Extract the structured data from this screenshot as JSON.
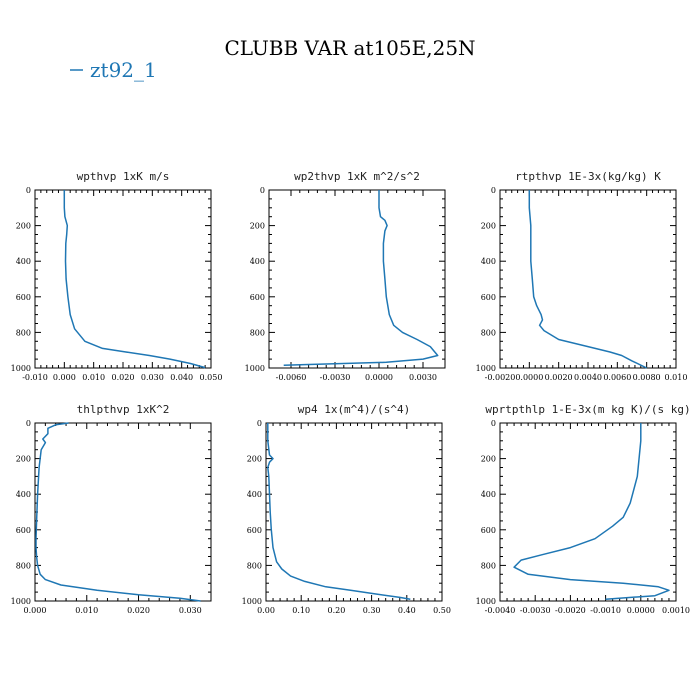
{
  "title": "CLUBB VAR at105E,25N",
  "legend": {
    "label": "zt92_1",
    "color": "#1f77b4"
  },
  "chart_data": [
    {
      "type": "line",
      "title": "wpthvp  1xK m/s",
      "series_name": "zt92_1",
      "xlim": [
        -0.01,
        0.05
      ],
      "ylim": [
        1000,
        0
      ],
      "xticks": [
        -0.01,
        0,
        0.01,
        0.02,
        0.03,
        0.04,
        0.05
      ],
      "xtick_labels": [
        "-0.010",
        "0.000",
        "0.010",
        "0.020",
        "0.030",
        "0.040",
        "0.050"
      ],
      "yticks": [
        0,
        200,
        400,
        600,
        800,
        1000
      ],
      "ytick_labels": [
        "0",
        "200",
        "400",
        "600",
        "800",
        "1000"
      ],
      "x": [
        0,
        0,
        0.0002,
        0.001,
        0.0008,
        0.0005,
        0.0004,
        0.0006,
        0.0012,
        0.002,
        0.0035,
        0.007,
        0.013,
        0.021,
        0.029,
        0.036,
        0.043,
        0.048
      ],
      "y": [
        0,
        100,
        150,
        200,
        250,
        300,
        400,
        500,
        600,
        700,
        780,
        850,
        890,
        910,
        930,
        950,
        975,
        998
      ]
    },
    {
      "type": "line",
      "title": "wp2thvp  1xK m^2/s^2",
      "series_name": "zt92_1",
      "xlim": [
        -0.0075,
        0.0045
      ],
      "ylim": [
        1000,
        0
      ],
      "xticks": [
        -0.006,
        -0.003,
        0,
        0.003
      ],
      "xtick_labels": [
        "-0.0060",
        "-0.0030",
        "0.0000",
        "0.0030"
      ],
      "yticks": [
        0,
        200,
        400,
        600,
        800,
        1000
      ],
      "ytick_labels": [
        "0",
        "200",
        "400",
        "600",
        "800",
        "1000"
      ],
      "x": [
        0,
        0,
        0.0001,
        0.0004,
        0.00055,
        0.0004,
        0.0003,
        0.0003,
        0.0004,
        0.0005,
        0.0007,
        0.001,
        0.0016,
        0.0026,
        0.0035,
        0.004,
        0.003,
        0.0005,
        -0.0045,
        -0.0065
      ],
      "y": [
        0,
        100,
        150,
        170,
        200,
        230,
        300,
        400,
        500,
        600,
        700,
        760,
        800,
        840,
        880,
        930,
        950,
        968,
        980,
        985
      ]
    },
    {
      "type": "line",
      "title": "rtpthvp  1E-3x(kg/kg) K",
      "series_name": "zt92_1",
      "xlim": [
        -0.002,
        0.01
      ],
      "ylim": [
        1000,
        0
      ],
      "xticks": [
        -0.002,
        0,
        0.002,
        0.004,
        0.006,
        0.008,
        0.01
      ],
      "xtick_labels": [
        "-0.0020",
        "0.0000",
        "0.0020",
        "0.0040",
        "0.0060",
        "0.0080",
        "0.010"
      ],
      "yticks": [
        0,
        200,
        400,
        600,
        800,
        1000
      ],
      "ytick_labels": [
        "0",
        "200",
        "400",
        "600",
        "800",
        "1000"
      ],
      "x": [
        0,
        0,
        0.0001,
        0.0001,
        0.0002,
        0.0003,
        0.0005,
        0.0008,
        0.0009,
        0.0007,
        0.001,
        0.002,
        0.004,
        0.0055,
        0.0063,
        0.007,
        0.008
      ],
      "y": [
        0,
        100,
        200,
        400,
        500,
        600,
        650,
        700,
        730,
        760,
        790,
        840,
        880,
        910,
        930,
        960,
        1000
      ]
    },
    {
      "type": "line",
      "title": "thlpthvp  1xK^2",
      "series_name": "zt92_1",
      "xlim": [
        0,
        0.034
      ],
      "ylim": [
        1000,
        0
      ],
      "xticks": [
        0,
        0.01,
        0.02,
        0.03
      ],
      "xtick_labels": [
        "0.000",
        "0.010",
        "0.020",
        "0.030"
      ],
      "yticks": [
        0,
        200,
        400,
        600,
        800,
        1000
      ],
      "ytick_labels": [
        "0",
        "200",
        "400",
        "600",
        "800",
        "1000"
      ],
      "x": [
        0.0065,
        0.004,
        0.0025,
        0.0025,
        0.0015,
        0.002,
        0.0012,
        0.0008,
        0.0005,
        0.0003,
        0.0002,
        0.0002,
        0.0003,
        0.0005,
        0.001,
        0.002,
        0.005,
        0.012,
        0.02,
        0.028,
        0.032
      ],
      "y": [
        0,
        10,
        30,
        60,
        90,
        110,
        150,
        250,
        400,
        550,
        650,
        700,
        750,
        800,
        850,
        880,
        910,
        940,
        965,
        985,
        1000
      ]
    },
    {
      "type": "line",
      "title": "wp4  1x(m^4)/(s^4)",
      "series_name": "zt92_1",
      "xlim": [
        0,
        0.5
      ],
      "ylim": [
        1000,
        0
      ],
      "xticks": [
        0,
        0.1,
        0.2,
        0.3,
        0.4,
        0.5
      ],
      "xtick_labels": [
        "0.00",
        "0.10",
        "0.20",
        "0.30",
        "0.40",
        "0.50"
      ],
      "yticks": [
        0,
        200,
        400,
        600,
        800,
        1000
      ],
      "ytick_labels": [
        "0",
        "200",
        "400",
        "600",
        "800",
        "1000"
      ],
      "x": [
        0.005,
        0.005,
        0.01,
        0.02,
        0.01,
        0.005,
        0.008,
        0.01,
        0.012,
        0.015,
        0.02,
        0.03,
        0.045,
        0.07,
        0.11,
        0.17,
        0.24,
        0.31,
        0.38,
        0.41
      ],
      "y": [
        0,
        100,
        180,
        200,
        220,
        250,
        300,
        400,
        500,
        600,
        700,
        780,
        820,
        860,
        890,
        920,
        940,
        960,
        980,
        990
      ]
    },
    {
      "type": "line",
      "title": "wprtpthlp  1-E-3x(m kg K)/(s kg)",
      "series_name": "zt92_1",
      "xlim": [
        -0.004,
        0.001
      ],
      "ylim": [
        1000,
        0
      ],
      "xticks": [
        -0.004,
        -0.003,
        -0.002,
        -0.001,
        0,
        0.001
      ],
      "xtick_labels": [
        "-0.0040",
        "-0.0030",
        "-0.0020",
        "-0.0010",
        "0.0000",
        "0.0010"
      ],
      "yticks": [
        0,
        200,
        400,
        600,
        800,
        1000
      ],
      "ytick_labels": [
        "0",
        "200",
        "400",
        "600",
        "800",
        "1000"
      ],
      "x": [
        0,
        0,
        -0.0001,
        -0.0003,
        -0.0005,
        -0.0008,
        -0.0013,
        -0.002,
        -0.0028,
        -0.0034,
        -0.0036,
        -0.0032,
        -0.002,
        -0.0005,
        0.0005,
        0.0008,
        0.0004,
        -0.001
      ],
      "y": [
        0,
        100,
        300,
        450,
        530,
        580,
        650,
        700,
        740,
        770,
        810,
        850,
        880,
        900,
        920,
        940,
        970,
        990
      ]
    }
  ]
}
